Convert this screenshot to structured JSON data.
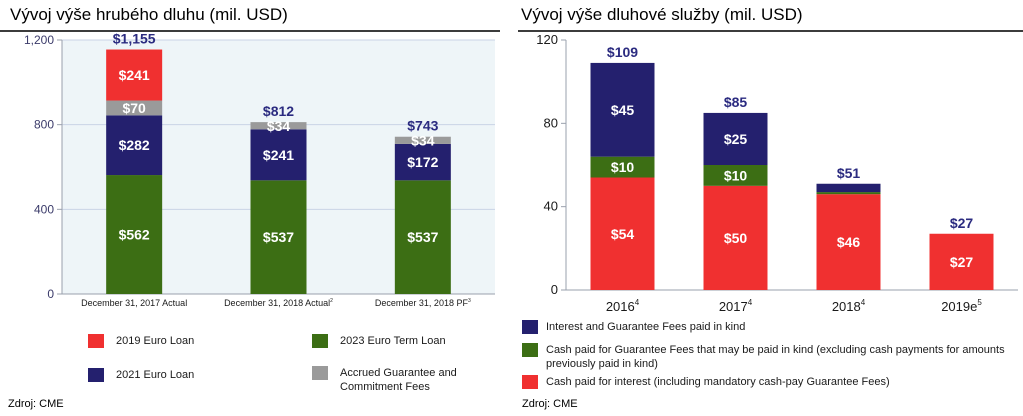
{
  "colors": {
    "red": "#f03030",
    "navy": "#24206e",
    "green": "#3c6e14",
    "gray": "#9a9a9a",
    "axis_text_left": "#3b3b6a",
    "total_label": "#2b2b80",
    "chart_bg_left": "#eef5f8"
  },
  "left": {
    "title": "Vývoj výše hrubého dluhu (mil. USD)",
    "source": "Zdroj: CME",
    "legend": [
      {
        "label": "2019 Euro Loan",
        "color": "#f03030"
      },
      {
        "label": "2023 Euro Term Loan",
        "color": "#3c6e14"
      },
      {
        "label": "2021 Euro Loan",
        "color": "#24206e"
      },
      {
        "label": "Accrued Guarantee and Commitment Fees",
        "color": "#9a9a9a"
      }
    ]
  },
  "right": {
    "title": "Vývoj výše dluhové služby (mil. USD)",
    "source": "Zdroj: CME",
    "legend": [
      {
        "label": "Interest and Guarantee Fees paid in kind",
        "color": "#24206e"
      },
      {
        "label": "Cash paid for Guarantee Fees that may be paid in kind (excluding cash payments for amounts previously paid in kind)",
        "color": "#3c6e14"
      },
      {
        "label": "Cash paid for interest (including mandatory cash-pay Guarantee Fees)",
        "color": "#f03030"
      }
    ]
  },
  "chart_data": [
    {
      "type": "bar",
      "stacked": true,
      "title": "Vývoj výše hrubého dluhu (mil. USD)",
      "categories": [
        "December 31, 2017 Actual",
        "December 31, 2018 Actual",
        "December 31, 2018 PF"
      ],
      "category_superscripts": [
        "",
        "2",
        "3"
      ],
      "ylim": [
        0,
        1200
      ],
      "yticks": [
        0,
        400,
        800,
        1200
      ],
      "ytick_labels": [
        "0",
        "400",
        "800",
        "1,200"
      ],
      "grid": true,
      "series": [
        {
          "name": "2023 Euro Term Loan",
          "color": "#3c6e14",
          "values": [
            562,
            537,
            537
          ],
          "labels": [
            "$562",
            "$537",
            "$537"
          ]
        },
        {
          "name": "2021 Euro Loan",
          "color": "#24206e",
          "values": [
            282,
            241,
            172
          ],
          "labels": [
            "$282",
            "$241",
            "$172"
          ]
        },
        {
          "name": "Accrued Guarantee and Commitment Fees",
          "color": "#9a9a9a",
          "values": [
            70,
            34,
            34
          ],
          "labels": [
            "$70",
            "$34",
            "$34"
          ]
        },
        {
          "name": "2019 Euro Loan",
          "color": "#f03030",
          "values": [
            241,
            0,
            0
          ],
          "labels": [
            "$241",
            "",
            ""
          ]
        }
      ],
      "totals": [
        1155,
        812,
        743
      ],
      "total_labels": [
        "$1,155",
        "$812",
        "$743"
      ],
      "legend_position": "bottom"
    },
    {
      "type": "bar",
      "stacked": true,
      "title": "Vývoj výše dluhové služby (mil. USD)",
      "categories": [
        "2016",
        "2017",
        "2018",
        "2019e"
      ],
      "category_superscripts": [
        "4",
        "4",
        "4",
        "5"
      ],
      "ylim": [
        0,
        120
      ],
      "yticks": [
        0,
        40,
        80,
        120
      ],
      "ytick_labels": [
        "0",
        "40",
        "80",
        "120"
      ],
      "grid": false,
      "series": [
        {
          "name": "Cash paid for interest (including mandatory cash-pay Guarantee Fees)",
          "color": "#f03030",
          "values": [
            54,
            50,
            46,
            27
          ],
          "labels": [
            "$54",
            "$50",
            "$46",
            "$27"
          ]
        },
        {
          "name": "Cash paid for Guarantee Fees that may be paid in kind (excluding cash payments for amounts previously paid in kind)",
          "color": "#3c6e14",
          "values": [
            10,
            10,
            1,
            0
          ],
          "labels": [
            "$10",
            "$10",
            "",
            ""
          ]
        },
        {
          "name": "Interest and Guarantee Fees paid in kind",
          "color": "#24206e",
          "values": [
            45,
            25,
            4,
            0
          ],
          "labels": [
            "$45",
            "$25",
            "",
            ""
          ]
        }
      ],
      "totals": [
        109,
        85,
        51,
        27
      ],
      "total_labels": [
        "$109",
        "$85",
        "$51",
        "$27"
      ],
      "legend_position": "bottom"
    }
  ]
}
